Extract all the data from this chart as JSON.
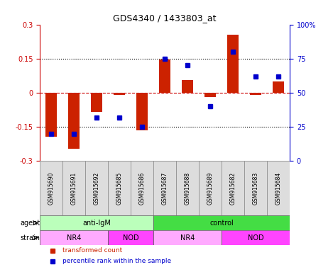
{
  "title": "GDS4340 / 1433803_at",
  "samples": [
    "GSM915690",
    "GSM915691",
    "GSM915692",
    "GSM915685",
    "GSM915686",
    "GSM915687",
    "GSM915688",
    "GSM915689",
    "GSM915682",
    "GSM915683",
    "GSM915684"
  ],
  "bar_values": [
    -0.195,
    -0.245,
    -0.085,
    -0.01,
    -0.165,
    0.145,
    0.055,
    -0.02,
    0.255,
    -0.01,
    0.05
  ],
  "dot_values": [
    20,
    20,
    32,
    32,
    25,
    75,
    70,
    40,
    80,
    62,
    62
  ],
  "ylim": [
    -0.3,
    0.3
  ],
  "yticks_left": [
    -0.3,
    -0.15,
    0.0,
    0.15,
    0.3
  ],
  "yticks_right": [
    0,
    25,
    50,
    75,
    100
  ],
  "ytick_labels_left": [
    "-0.3",
    "-0.15",
    "0",
    "0.15",
    "0.3"
  ],
  "ytick_labels_right": [
    "0",
    "25",
    "50",
    "75",
    "100%"
  ],
  "hlines": [
    -0.15,
    0.0,
    0.15
  ],
  "hline_styles": [
    "dotted",
    "dashed",
    "dotted"
  ],
  "bar_color": "#cc2200",
  "dot_color": "#0000cc",
  "agent_groups": [
    {
      "label": "anti-IgM",
      "start": 0,
      "end": 5,
      "color": "#bbffbb"
    },
    {
      "label": "control",
      "start": 5,
      "end": 11,
      "color": "#44dd44"
    }
  ],
  "strain_groups": [
    {
      "label": "NR4",
      "start": 0,
      "end": 3,
      "color": "#ffaaff"
    },
    {
      "label": "NOD",
      "start": 3,
      "end": 5,
      "color": "#ff44ff"
    },
    {
      "label": "NR4",
      "start": 5,
      "end": 8,
      "color": "#ffaaff"
    },
    {
      "label": "NOD",
      "start": 8,
      "end": 11,
      "color": "#ff44ff"
    }
  ],
  "legend_items": [
    {
      "label": "transformed count",
      "color": "#cc2200"
    },
    {
      "label": "percentile rank within the sample",
      "color": "#0000cc"
    }
  ],
  "label_agent": "agent",
  "label_strain": "strain",
  "background_color": "#ffffff",
  "bar_width": 0.5
}
